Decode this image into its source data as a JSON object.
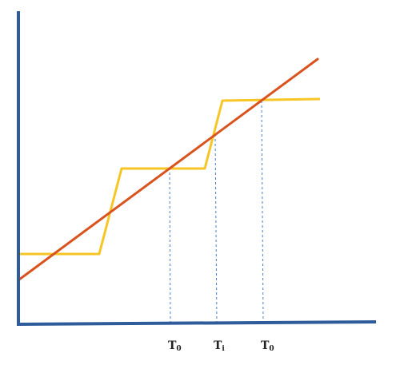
{
  "colors": {
    "axis": "#2e5c9a",
    "linear_line": "#d9531e",
    "step_line": "#f7c625",
    "guide": "#4a7ec4",
    "label": "#222222"
  },
  "tick_labels": [
    {
      "main": "T",
      "sub": "0"
    },
    {
      "main": "T",
      "sub": "i"
    },
    {
      "main": "T",
      "sub": "0"
    }
  ]
}
